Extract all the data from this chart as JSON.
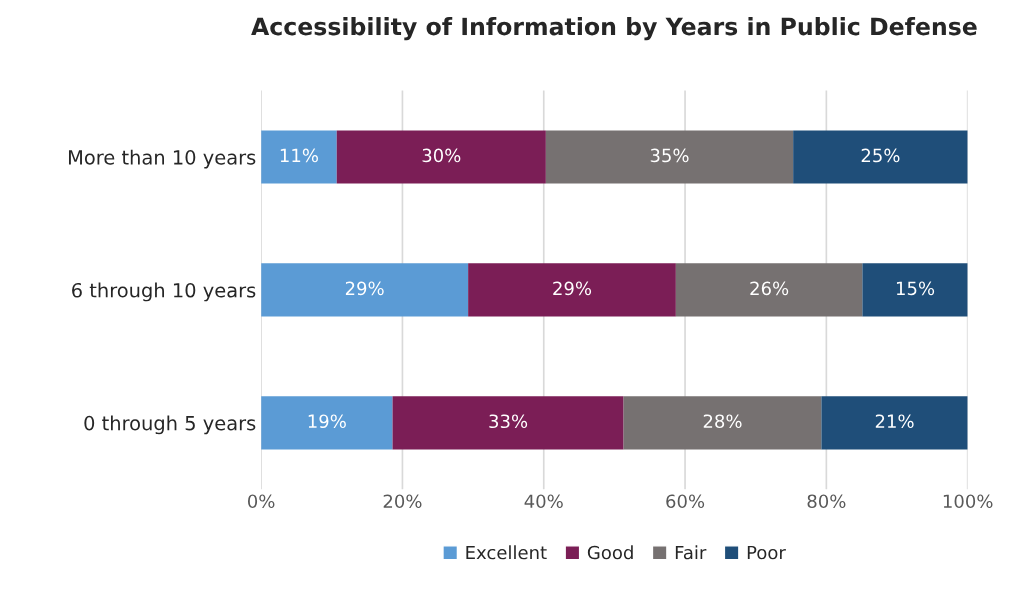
{
  "chart_data": {
    "type": "bar",
    "orientation": "horizontal",
    "stacked": true,
    "title": "Accessibility of Information by Years in Public Defense",
    "categories": [
      "More than 10 years",
      "6 through 10 years",
      "0 through 5 years"
    ],
    "series": [
      {
        "name": "Excellent",
        "color": "#5b9bd5",
        "values": [
          10.7,
          29.3,
          18.6
        ],
        "value_labels": [
          "11%",
          "29%",
          "19%"
        ]
      },
      {
        "name": "Good",
        "color": "#7b1e56",
        "values": [
          29.6,
          29.4,
          32.7
        ],
        "value_labels": [
          "30%",
          "29%",
          "33%"
        ]
      },
      {
        "name": "Fair",
        "color": "#767171",
        "values": [
          35.0,
          26.4,
          28.0
        ],
        "value_labels": [
          "35%",
          "26%",
          "28%"
        ]
      },
      {
        "name": "Poor",
        "color": "#1f4e79",
        "values": [
          24.7,
          14.9,
          20.7
        ],
        "value_labels": [
          "25%",
          "15%",
          "21%"
        ]
      }
    ],
    "xlim": [
      0,
      100
    ],
    "xticks": [
      {
        "value": 0,
        "label": "0%"
      },
      {
        "value": 20,
        "label": "20%"
      },
      {
        "value": 40,
        "label": "40%"
      },
      {
        "value": 60,
        "label": "60%"
      },
      {
        "value": 80,
        "label": "80%"
      },
      {
        "value": 100,
        "label": "100%"
      }
    ],
    "grid": "x",
    "legend": "bottom"
  }
}
